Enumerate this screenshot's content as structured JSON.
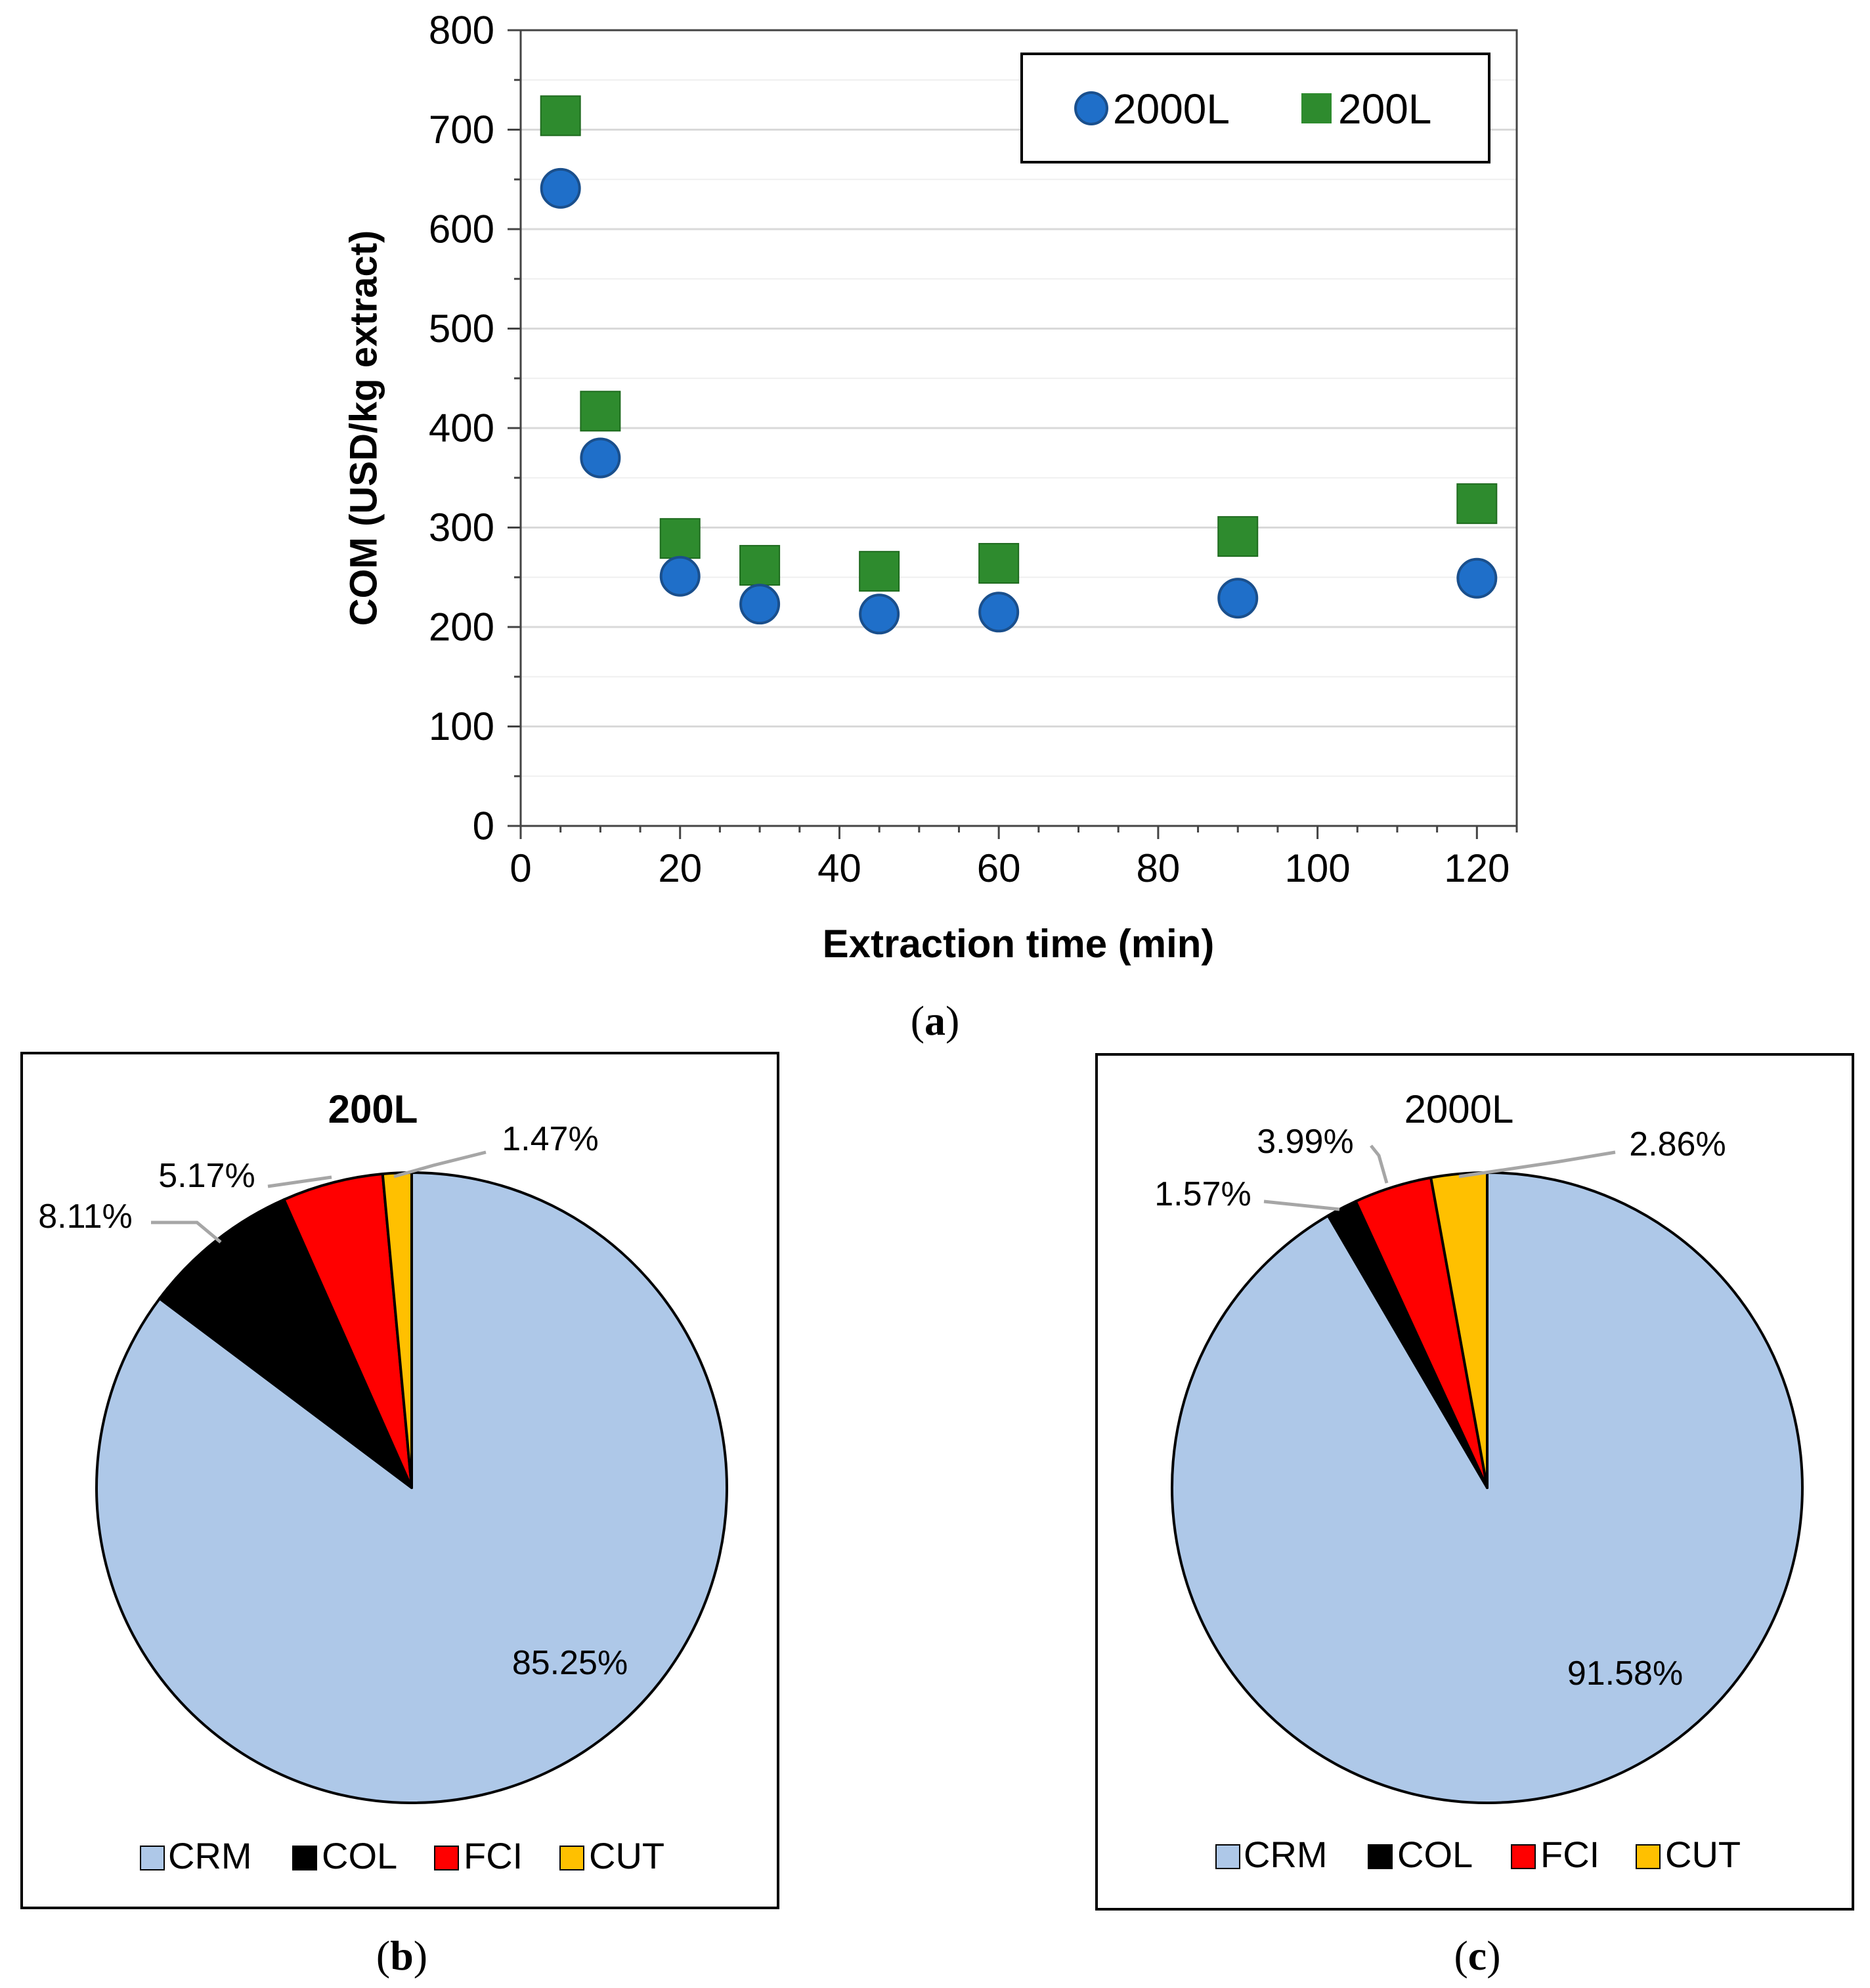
{
  "colors": {
    "series_2000L": "#1f6fc9",
    "series_200L": "#2e8b2e",
    "CRM": "#aec8e8",
    "COL": "#000000",
    "FCI": "#ff0000",
    "CUT": "#ffc000"
  },
  "chart_data": [
    {
      "id": "a",
      "type": "scatter",
      "panel_label": "a",
      "xlabel": "Extraction time (min)",
      "ylabel": "COM (USD/kg extract)",
      "xlim": [
        0,
        125
      ],
      "ylim": [
        0,
        800
      ],
      "x_ticks": [
        "0",
        "20",
        "40",
        "60",
        "80",
        "100",
        "120"
      ],
      "y_ticks": [
        "0",
        "100",
        "200",
        "300",
        "400",
        "500",
        "600",
        "700",
        "800"
      ],
      "grid": true,
      "legend_position": "top-right",
      "series": [
        {
          "name": "2000L",
          "marker": "circle",
          "x": [
            5,
            10,
            20,
            30,
            45,
            60,
            90,
            120
          ],
          "y": [
            641,
            370,
            251,
            223,
            213,
            215,
            229,
            249
          ]
        },
        {
          "name": "200L",
          "marker": "square",
          "x": [
            5,
            10,
            20,
            30,
            45,
            60,
            90,
            120
          ],
          "y": [
            714,
            417,
            289,
            262,
            256,
            264,
            291,
            324
          ]
        }
      ]
    },
    {
      "id": "b",
      "type": "pie",
      "panel_label": "b",
      "title": "200L",
      "categories": [
        "CRM",
        "COL",
        "FCI",
        "CUT"
      ],
      "values": [
        85.25,
        8.11,
        5.17,
        1.47
      ],
      "labels": [
        "85.25%",
        "8.11%",
        "5.17%",
        "1.47%"
      ],
      "legend_position": "bottom"
    },
    {
      "id": "c",
      "type": "pie",
      "panel_label": "c",
      "title": "2000L",
      "categories": [
        "CRM",
        "COL",
        "FCI",
        "CUT"
      ],
      "values": [
        91.58,
        1.57,
        3.99,
        2.86
      ],
      "labels": [
        "91.58%",
        "1.57%",
        "3.99%",
        "2.86%"
      ],
      "legend_position": "bottom"
    }
  ]
}
